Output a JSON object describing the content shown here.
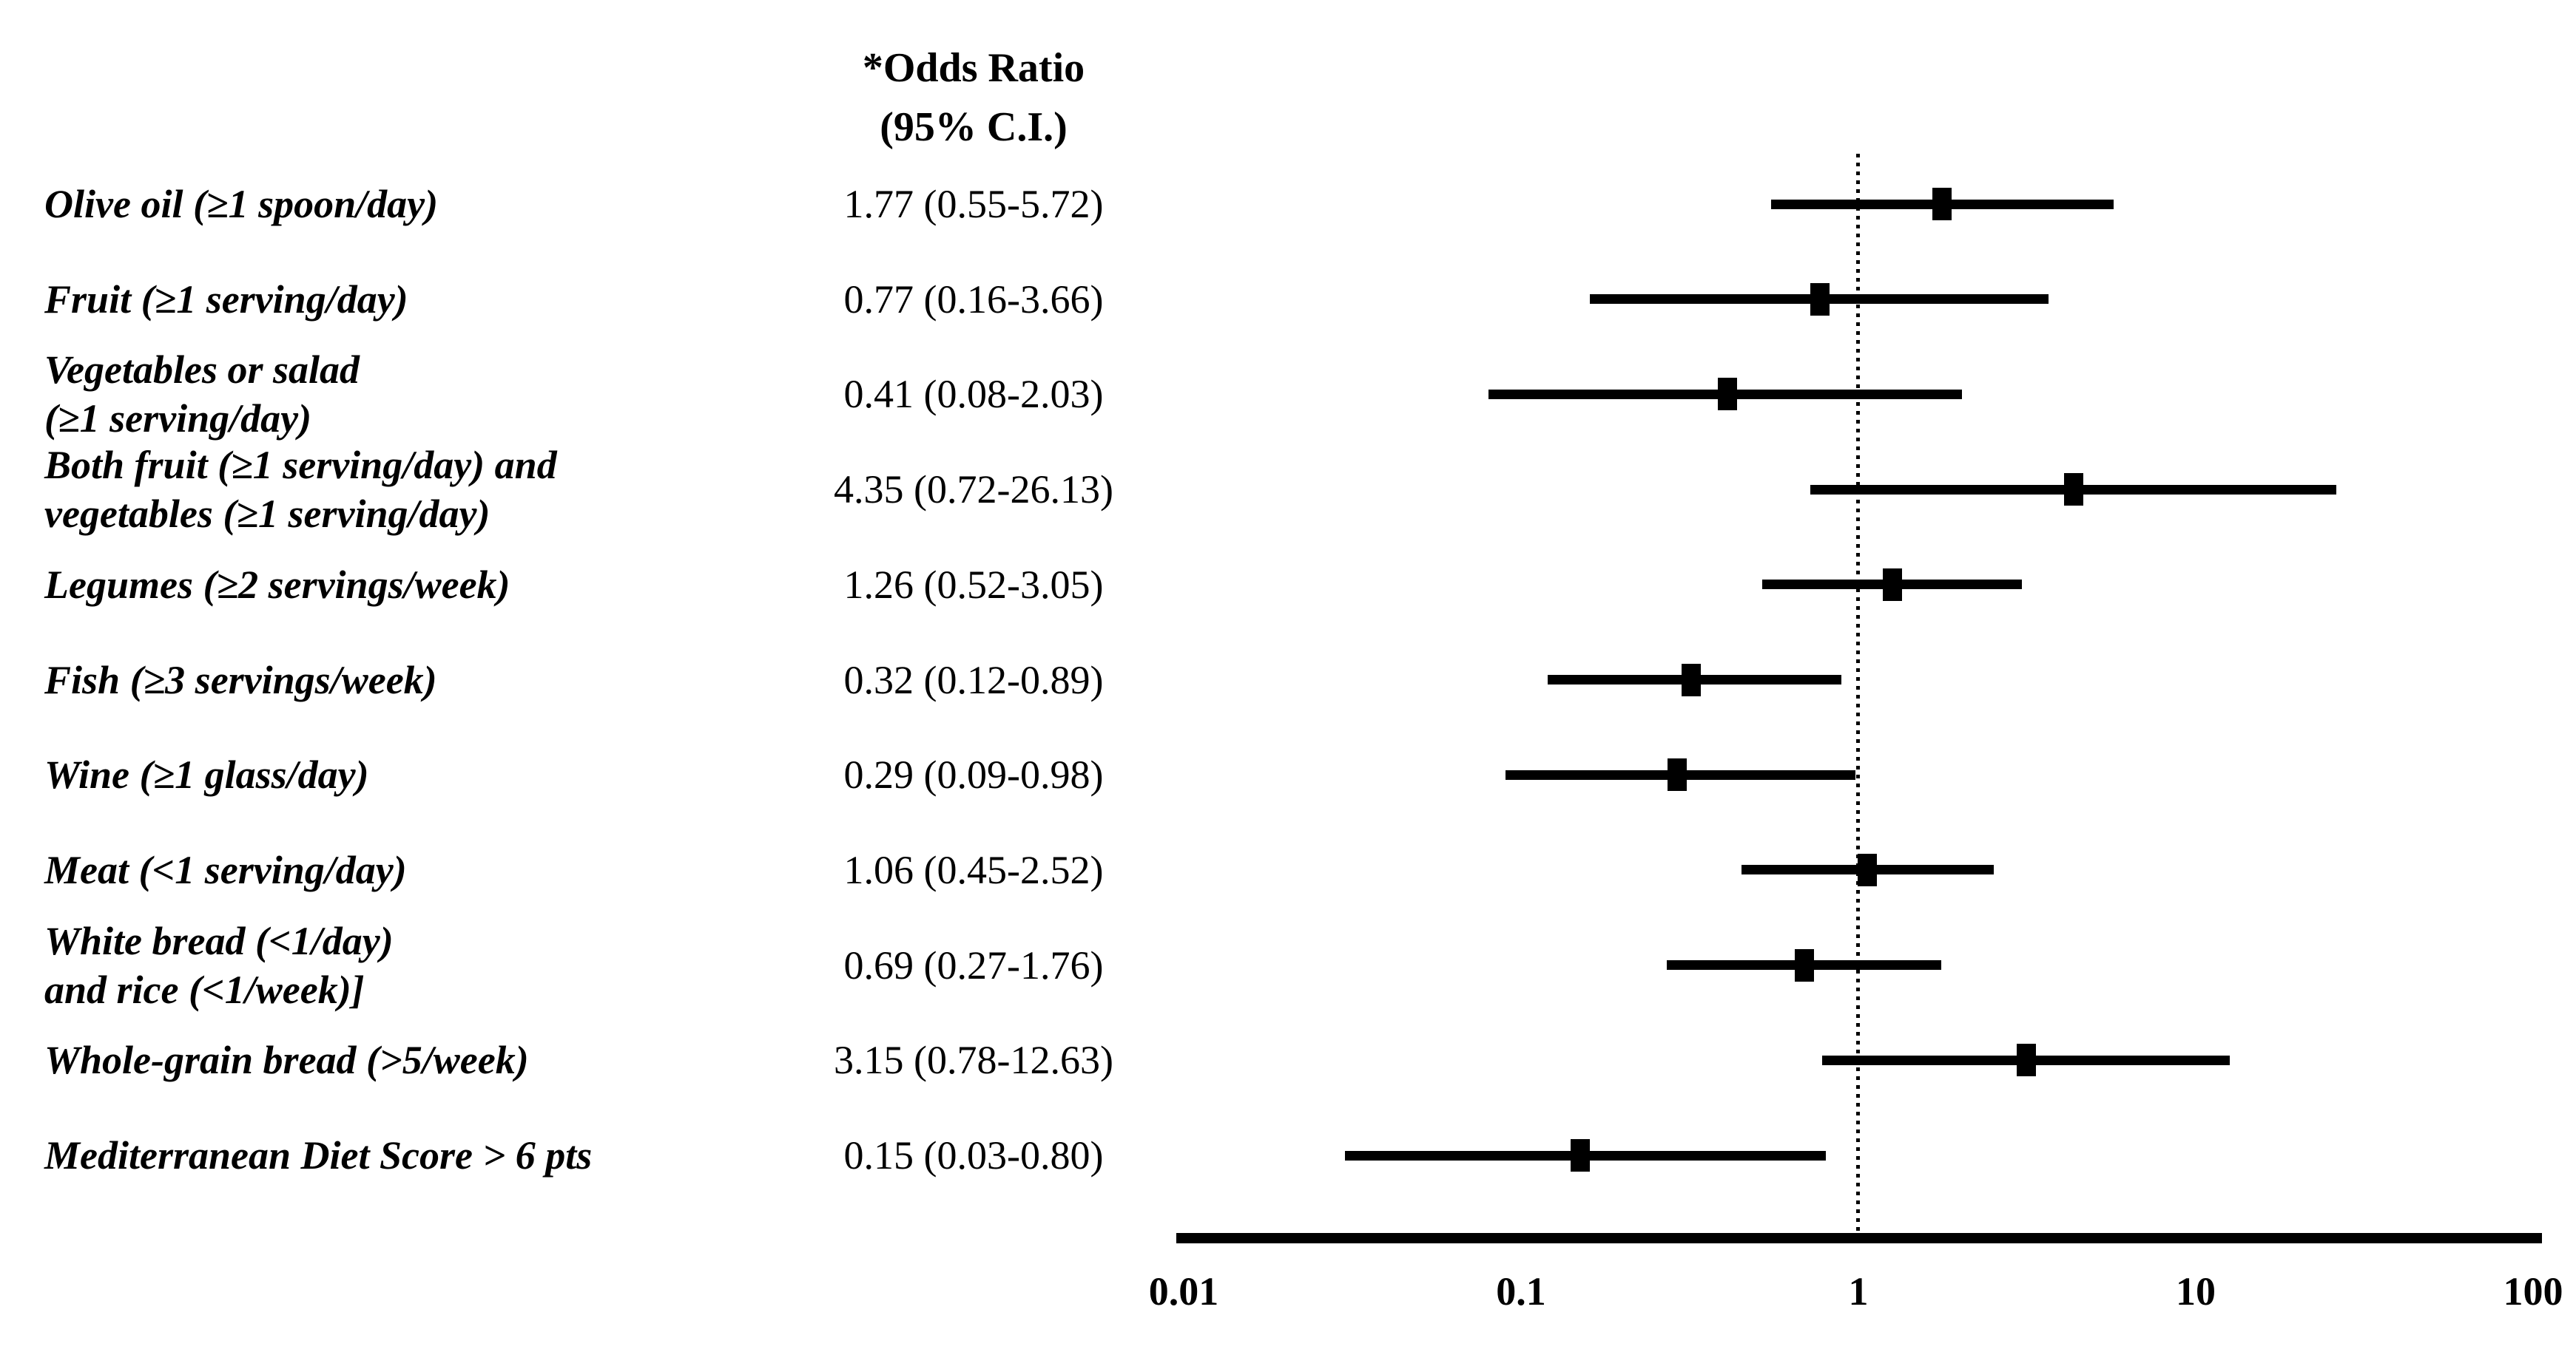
{
  "header": {
    "line1": "*Odds Ratio",
    "line2": "(95% C.I.)"
  },
  "chart_data": {
    "type": "forest",
    "title": "",
    "xlabel": "",
    "x_axis": {
      "scale": "log",
      "range": [
        0.01,
        100
      ],
      "ticks": [
        0.01,
        0.1,
        1,
        10,
        100
      ],
      "tick_labels": [
        "0.01",
        "0.1",
        "1",
        "10",
        "100"
      ],
      "reference_line": 1,
      "grid": false
    },
    "colors": {
      "marker": "#000000",
      "ci": "#000000",
      "axis": "#000000",
      "background": "#ffffff"
    },
    "rows": [
      {
        "label_lines": [
          "Olive oil (≥1 spoon/day)"
        ],
        "or_text": "1.77 (0.55-5.72)",
        "or": 1.77,
        "ci_low": 0.55,
        "ci_high": 5.72
      },
      {
        "label_lines": [
          "Fruit (≥1 serving/day)"
        ],
        "or_text": "0.77 (0.16-3.66)",
        "or": 0.77,
        "ci_low": 0.16,
        "ci_high": 3.66
      },
      {
        "label_lines": [
          "Vegetables or salad",
          "(≥1 serving/day)"
        ],
        "or_text": "0.41 (0.08-2.03)",
        "or": 0.41,
        "ci_low": 0.08,
        "ci_high": 2.03
      },
      {
        "label_lines": [
          "Both fruit (≥1 serving/day) and",
          "vegetables (≥1 serving/day)"
        ],
        "or_text": "4.35 (0.72-26.13)",
        "or": 4.35,
        "ci_low": 0.72,
        "ci_high": 26.13
      },
      {
        "label_lines": [
          "Legumes (≥2 servings/week)"
        ],
        "or_text": "1.26 (0.52-3.05)",
        "or": 1.26,
        "ci_low": 0.52,
        "ci_high": 3.05
      },
      {
        "label_lines": [
          "Fish (≥3 servings/week)"
        ],
        "or_text": "0.32 (0.12-0.89)",
        "or": 0.32,
        "ci_low": 0.12,
        "ci_high": 0.89
      },
      {
        "label_lines": [
          "Wine (≥1 glass/day)"
        ],
        "or_text": "0.29 (0.09-0.98)",
        "or": 0.29,
        "ci_low": 0.09,
        "ci_high": 0.98
      },
      {
        "label_lines": [
          "Meat (<1 serving/day)"
        ],
        "or_text": "1.06 (0.45-2.52)",
        "or": 1.06,
        "ci_low": 0.45,
        "ci_high": 2.52
      },
      {
        "label_lines": [
          "White bread (<1/day)",
          "and rice (<1/week)]"
        ],
        "or_text": "0.69 (0.27-1.76)",
        "or": 0.69,
        "ci_low": 0.27,
        "ci_high": 1.76
      },
      {
        "label_lines": [
          "Whole-grain bread (>5/week)"
        ],
        "or_text": "3.15 (0.78-12.63)",
        "or": 3.15,
        "ci_low": 0.78,
        "ci_high": 12.63
      },
      {
        "label_lines": [
          "Mediterranean Diet Score > 6 pts"
        ],
        "or_text": "0.15 (0.03-0.80)",
        "or": 0.15,
        "ci_low": 0.03,
        "ci_high": 0.8
      }
    ]
  }
}
